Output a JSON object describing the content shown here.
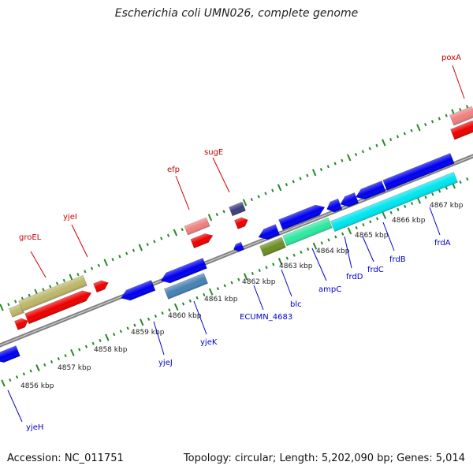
{
  "title": "Escherichia coli UMN026, complete genome",
  "footer": {
    "accession": "Accession: NC_011751",
    "stats": "Topology: circular; Length: 5,202,090 bp; Genes: 5,014"
  },
  "ticks": [
    "4856 kbp",
    "4857 kbp",
    "4858 kbp",
    "4859 kbp",
    "4860 kbp",
    "4861 kbp",
    "4862 kbp",
    "4863 kbp",
    "4864 kbp",
    "4865 kbp",
    "4866 kbp",
    "4867 kbp"
  ],
  "labels_top": [
    "groEL",
    "yjeI",
    "efp",
    "sugE",
    "poxA"
  ],
  "labels_bottom": [
    "yjeH",
    "yjeJ",
    "yjeK",
    "ECUMN_4683",
    "blc",
    "ampC",
    "frdD",
    "frdC",
    "frdB",
    "frdA"
  ],
  "colors": {
    "red": "#ee0000",
    "blue": "#0000ee",
    "olive": "#bdb76b",
    "pink": "#f08080",
    "navy": "#3d3d80",
    "steel": "#4682b4",
    "aqua": "#00e5ee",
    "green": "#2ee8a0",
    "moss": "#6b8e23",
    "tick": "#228b22",
    "backbone": "#808080"
  }
}
